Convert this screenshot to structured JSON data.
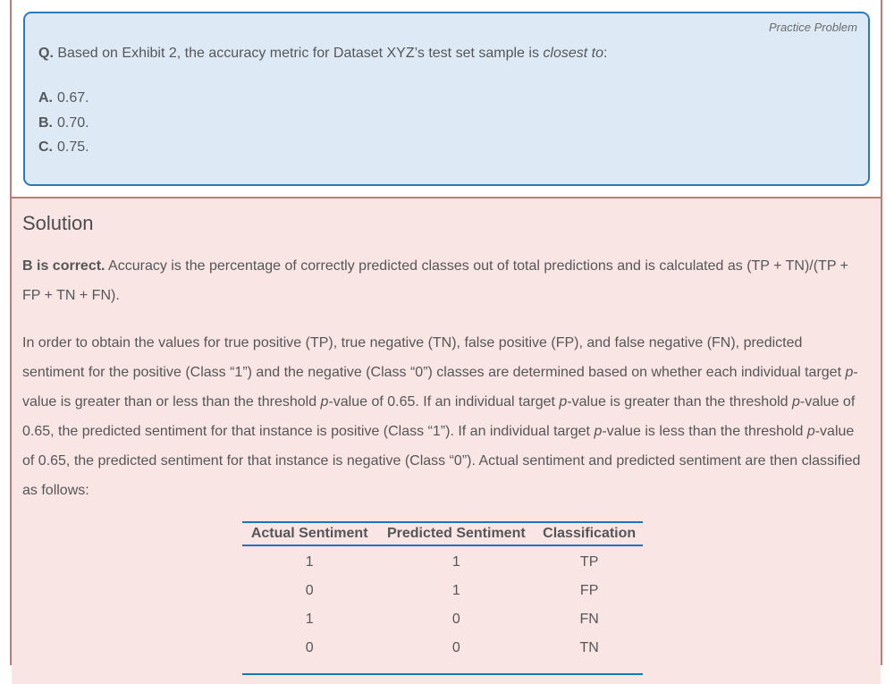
{
  "practice_problem": {
    "label": "Practice Problem",
    "question_segments": [
      {
        "t": "Q.",
        "b": true
      },
      {
        "t": " Based on Exhibit 2, the accuracy metric for Dataset XYZ’s test set sample is "
      },
      {
        "t": "closest to",
        "i": true
      },
      {
        "t": ":"
      }
    ],
    "options": [
      {
        "letter": "A.",
        "value": "0.67."
      },
      {
        "letter": "B.",
        "value": "0.70."
      },
      {
        "letter": "C.",
        "value": "0.75."
      }
    ]
  },
  "solution": {
    "heading": "Solution",
    "para1": [
      {
        "t": "B is correct.",
        "b": true
      },
      {
        "t": " Accuracy is the percentage of correctly predicted classes out of total predictions and is calculated as (TP + TN)/(TP + FP + TN + FN)."
      }
    ],
    "para2": [
      {
        "t": "In order to obtain the values for true positive (TP), true negative (TN), false positive (FP), and false negative (FN), predicted sentiment for the positive (Class “1”) and the negative (Class “0”) classes are determined based on whether each individual target "
      },
      {
        "t": "p",
        "i": true
      },
      {
        "t": "-value is greater than or less than the threshold "
      },
      {
        "t": "p",
        "i": true
      },
      {
        "t": "-value of 0.65. If an individual target "
      },
      {
        "t": "p",
        "i": true
      },
      {
        "t": "-value is greater than the threshold "
      },
      {
        "t": "p",
        "i": true
      },
      {
        "t": "-value of 0.65, the predicted sentiment for that instance is positive (Class “1”). If an individual target "
      },
      {
        "t": "p",
        "i": true
      },
      {
        "t": "-value is less than the threshold "
      },
      {
        "t": "p",
        "i": true
      },
      {
        "t": "-value of 0.65, the predicted sentiment for that instance is negative (Class “0”). Actual sentiment and predicted sentiment are then classified as follows:"
      }
    ],
    "table": {
      "headers": [
        "Actual Sentiment",
        "Predicted Sentiment",
        "Classification"
      ],
      "rows": [
        [
          "1",
          "1",
          "TP"
        ],
        [
          "0",
          "1",
          "FP"
        ],
        [
          "1",
          "0",
          "FN"
        ],
        [
          "0",
          "0",
          "TN"
        ]
      ]
    }
  },
  "colors": {
    "question_box_bg": "#ddeaf6",
    "question_box_border": "#2e7ab8",
    "solution_bg": "#f9e5e3",
    "solution_border": "#c57b75",
    "table_line": "#1b74bc",
    "text": "#55565a",
    "muted_text": "#6a6a6a",
    "heading_text": "#4c4c50"
  }
}
